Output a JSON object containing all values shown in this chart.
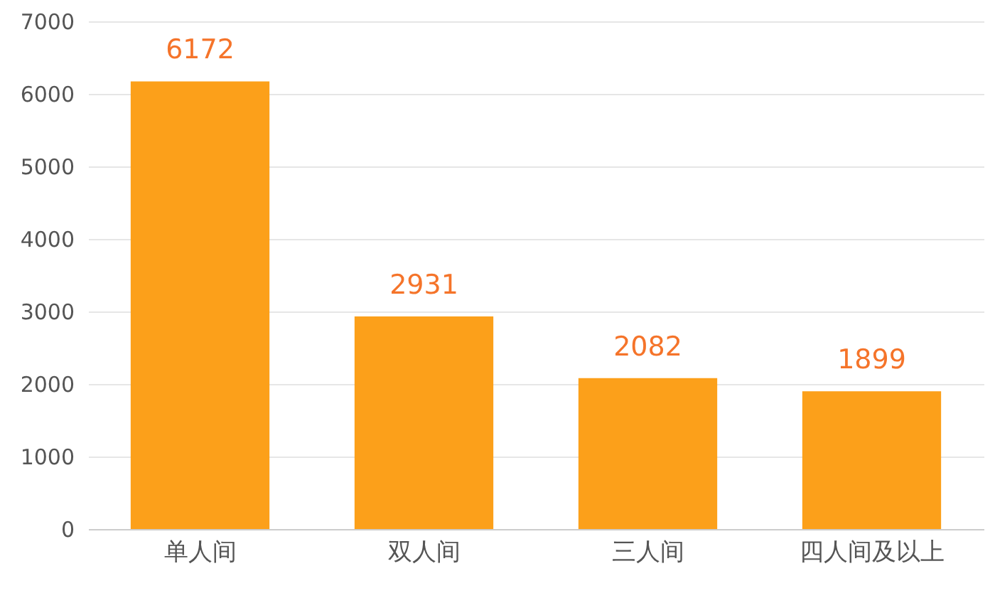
{
  "chart_data": {
    "type": "bar",
    "categories": [
      "单人间",
      "双人间",
      "三人间",
      "四人间及以上"
    ],
    "values": [
      6172,
      2931,
      2082,
      1899
    ],
    "color": "#fca01a",
    "ylim": [
      0,
      7000
    ],
    "yticks": [
      0,
      1000,
      2000,
      3000,
      4000,
      5000,
      6000,
      7000
    ],
    "grid": "y",
    "data_labels": true
  }
}
